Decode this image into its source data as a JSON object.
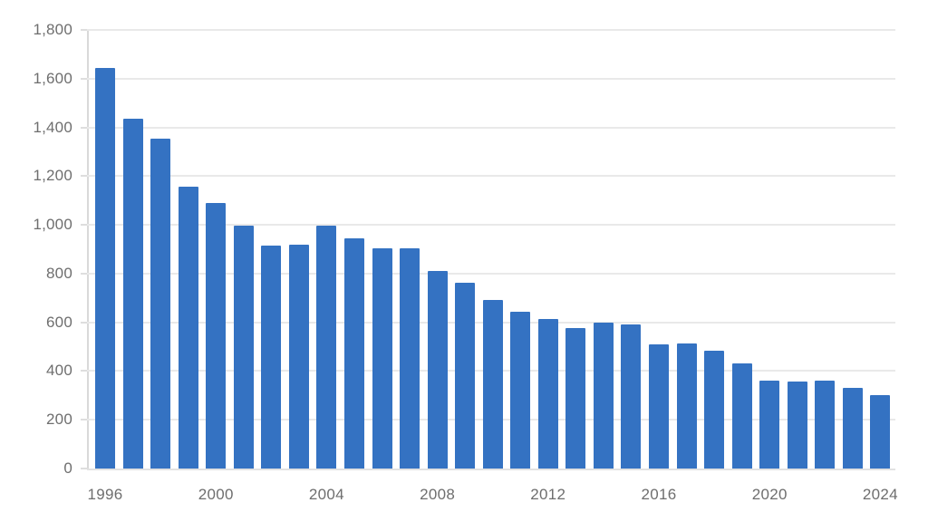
{
  "chart_data": {
    "type": "bar",
    "title": "",
    "xlabel": "",
    "ylabel": "",
    "categories": [
      "1996",
      "1997",
      "1998",
      "1999",
      "2000",
      "2001",
      "2002",
      "2003",
      "2004",
      "2005",
      "2006",
      "2007",
      "2008",
      "2009",
      "2010",
      "2011",
      "2012",
      "2013",
      "2014",
      "2015",
      "2016",
      "2017",
      "2018",
      "2019",
      "2020",
      "2021",
      "2022",
      "2023",
      "2024"
    ],
    "values": [
      1645,
      1435,
      1355,
      1155,
      1090,
      995,
      915,
      920,
      995,
      945,
      905,
      905,
      810,
      762,
      690,
      645,
      615,
      575,
      600,
      593,
      510,
      515,
      485,
      430,
      360,
      358,
      360,
      332,
      302
    ],
    "ylim": [
      0,
      1800
    ],
    "y_tick_interval": 200,
    "y_tick_labels": [
      "0",
      "200",
      "400",
      "600",
      "800",
      "1,000",
      "1,200",
      "1,400",
      "1,600",
      "1,800"
    ],
    "x_tick_labels": [
      "1996",
      "2000",
      "2004",
      "2008",
      "2012",
      "2016",
      "2020",
      "2024"
    ],
    "grid": true,
    "legend_position": "none",
    "colors": {
      "bar": "#3472c2",
      "gridline": "#e9e9e9",
      "axis_line": "#d9d9d9",
      "labels": "#6e6e6e",
      "background": "#ffffff"
    }
  }
}
